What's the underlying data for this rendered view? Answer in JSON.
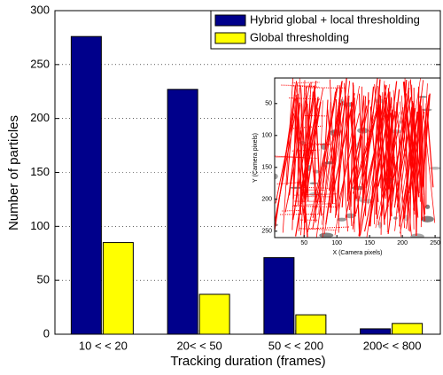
{
  "chart_data": [
    {
      "type": "bar",
      "x_label": "Tracking duration (frames)",
      "y_label": "Number of particles",
      "categories": [
        "10 < < 20",
        "20< < 50",
        "50 < < 200",
        "200< < 800"
      ],
      "series": [
        {
          "name": "Hybrid global + local thresholding",
          "color": "#00008b",
          "values": [
            276,
            227,
            71,
            5
          ]
        },
        {
          "name": "Global thresholding",
          "color": "#ffff00",
          "values": [
            85,
            37,
            18,
            10
          ]
        }
      ],
      "ylim": [
        0,
        300
      ],
      "yticks": [
        0,
        50,
        100,
        150,
        200,
        250,
        300
      ],
      "grid": true,
      "legend": "top-right"
    },
    {
      "type": "image",
      "x_label": "X (Camera pixels)",
      "y_label": "Y (Camera pixels)",
      "xlim": [
        5,
        258
      ],
      "xticks": [
        50,
        100,
        150,
        200,
        250
      ],
      "ylim": [
        260,
        10
      ],
      "yticks": [
        50,
        100,
        150,
        200,
        250
      ],
      "track_color": "#ff0000"
    }
  ]
}
